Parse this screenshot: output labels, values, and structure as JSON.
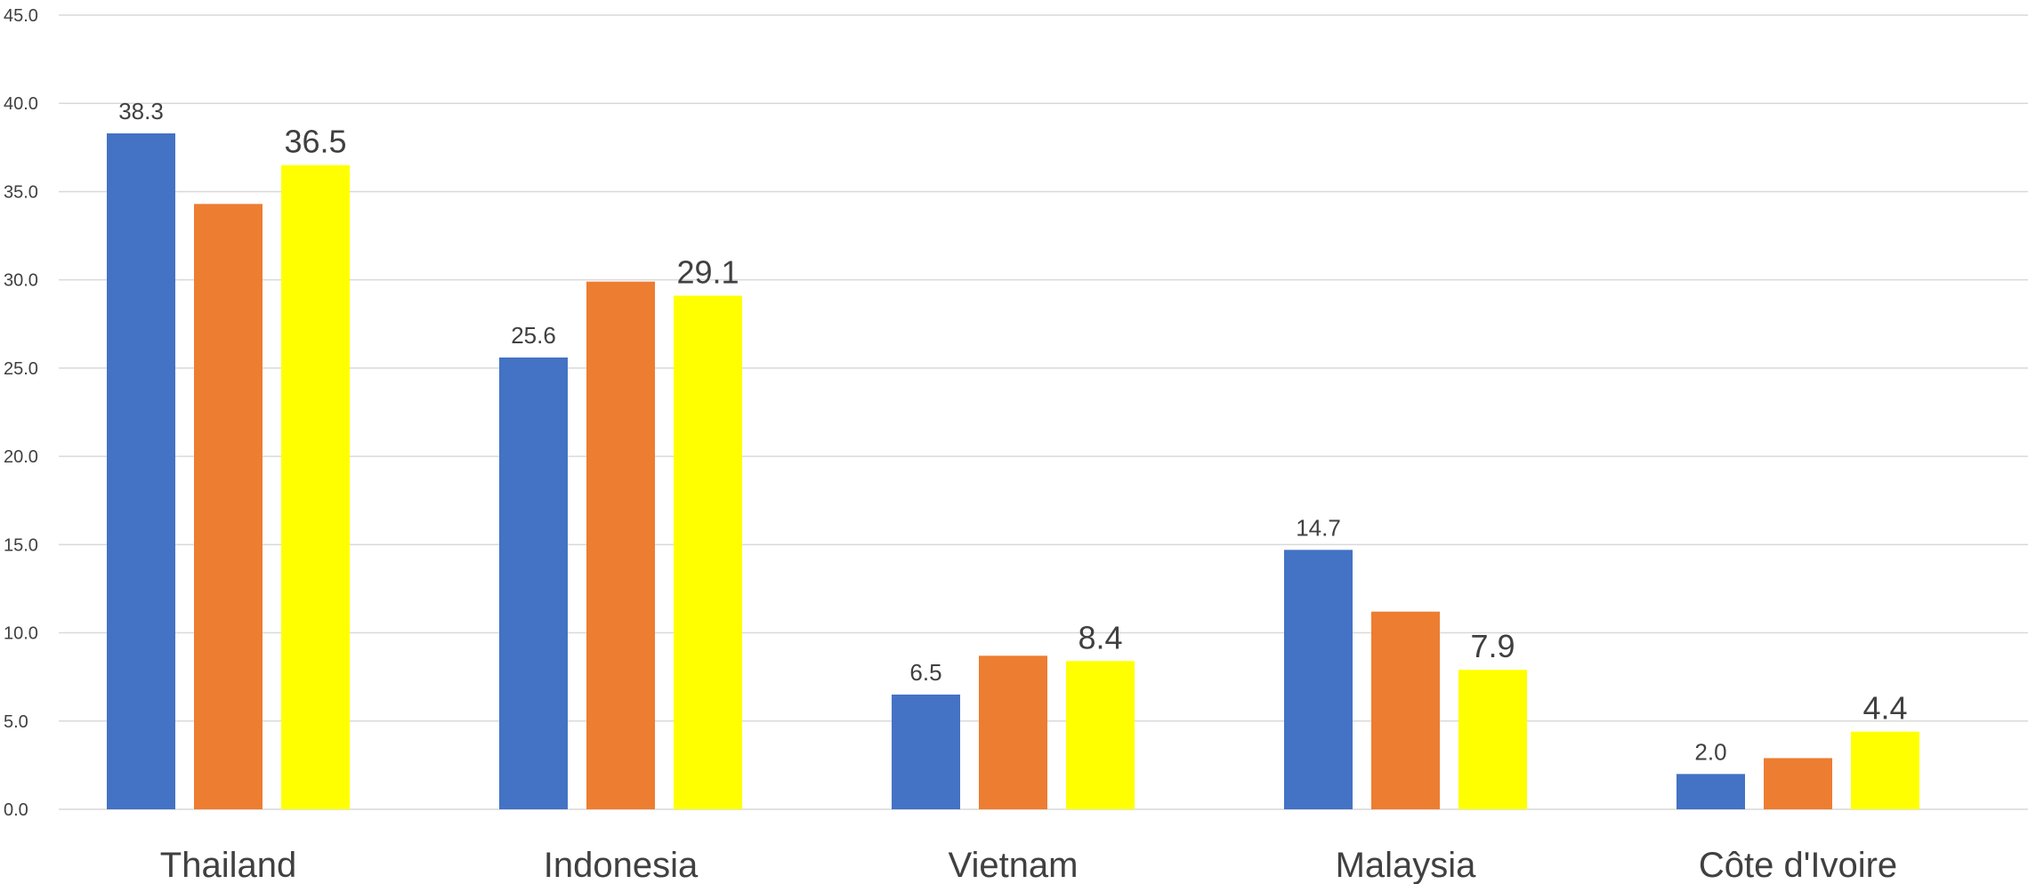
{
  "chart_data": {
    "type": "bar",
    "title": "",
    "xlabel": "",
    "ylabel": "",
    "ylim": [
      0,
      45
    ],
    "ytick_step": 5,
    "ytick_labels": [
      "0.0",
      "5.0",
      "10.0",
      "15.0",
      "20.0",
      "25.0",
      "30.0",
      "35.0",
      "40.0",
      "45.0"
    ],
    "grid": true,
    "legend": "none",
    "categories": [
      "Thailand",
      "Indonesia",
      "Vietnam",
      "Malaysia",
      "Côte d'Ivoire"
    ],
    "series": [
      {
        "color": "#4472C4",
        "values": [
          38.3,
          25.6,
          6.5,
          14.7,
          2.0
        ],
        "labels": [
          "38.3",
          "25.6",
          "6.5",
          "14.7",
          "2.0"
        ],
        "label_style": "small"
      },
      {
        "color": "#ED7D31",
        "values": [
          34.3,
          29.9,
          8.7,
          11.2,
          2.9
        ],
        "labels": null,
        "label_style": "none"
      },
      {
        "color": "#FFFF00",
        "values": [
          36.5,
          29.1,
          8.4,
          7.9,
          4.4
        ],
        "labels": [
          "36.5",
          "29.1",
          "8.4",
          "7.9",
          "4.4"
        ],
        "label_style": "large"
      }
    ]
  },
  "colors": {
    "gridline": "#D9D9D9",
    "axis_text": "#404040",
    "background": "#FFFFFF"
  }
}
